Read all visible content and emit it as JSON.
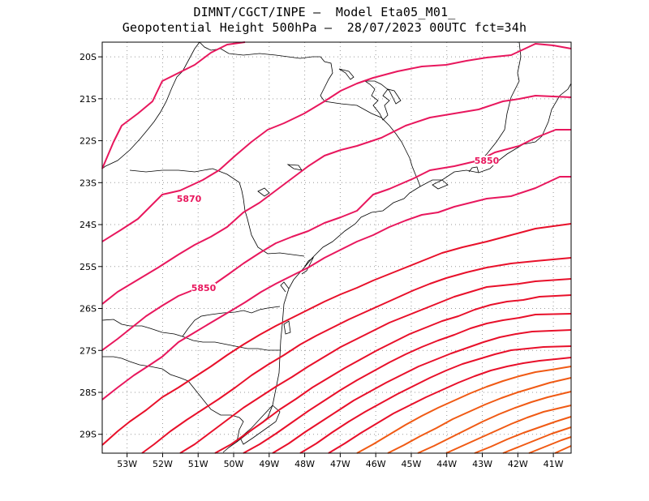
{
  "header": {
    "line1": "DIMNT/CGCT/INPE –  Model Eta05_M01_",
    "line2": "Geopotential Height 500hPa –  28/07/2023 00UTC fct=34h"
  },
  "colors": {
    "frame": "#000000",
    "grid": "#999999",
    "coast": "#000000",
    "contour_low": "#e8175d",
    "contour_mid": "#e8102a",
    "contour_high": "#f05a14"
  },
  "map": {
    "lon_range": [
      -53.7,
      -40.5
    ],
    "lat_range": [
      -29.45,
      -19.65
    ],
    "x_ticks": [
      "53W",
      "52W",
      "51W",
      "50W",
      "49W",
      "48W",
      "47W",
      "46W",
      "45W",
      "44W",
      "43W",
      "42W",
      "41W"
    ],
    "y_ticks": [
      "20S",
      "21S",
      "22S",
      "23S",
      "24S",
      "25S",
      "26S",
      "27S",
      "28S",
      "29S"
    ],
    "contour_labels": [
      "5870",
      "5850",
      "5850"
    ]
  }
}
